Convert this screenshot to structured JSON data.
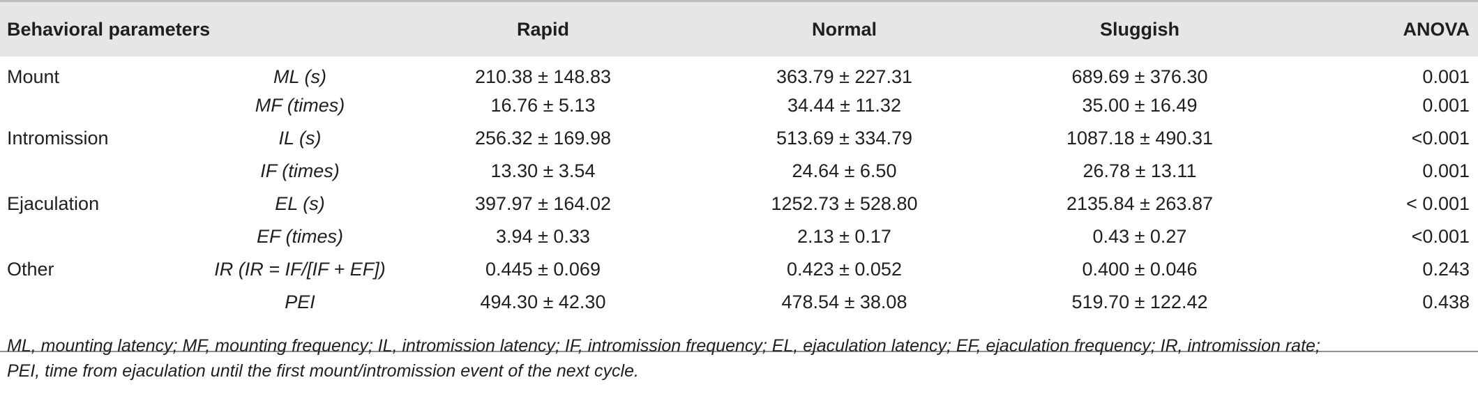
{
  "table": {
    "headers": {
      "behavioral": "Behavioral parameters",
      "rapid": "Rapid",
      "normal": "Normal",
      "sluggish": "Sluggish",
      "anova": "ANOVA"
    },
    "rows": [
      {
        "group": "Mount",
        "param": "ML (s)",
        "rapid": "210.38 ± 148.83",
        "normal": "363.79 ± 227.31",
        "sluggish": "689.69 ± 376.30",
        "anova": "0.001"
      },
      {
        "group": "",
        "param": "MF (times)",
        "rapid": "16.76 ± 5.13",
        "normal": "34.44 ± 11.32",
        "sluggish": "35.00 ± 16.49",
        "anova": "0.001"
      },
      {
        "group": "Intromission",
        "param": "IL (s)",
        "rapid": "256.32 ± 169.98",
        "normal": "513.69 ± 334.79",
        "sluggish": "1087.18 ± 490.31",
        "anova": "<0.001"
      },
      {
        "group": "",
        "param": "IF (times)",
        "rapid": "13.30 ± 3.54",
        "normal": "24.64 ± 6.50",
        "sluggish": "26.78 ± 13.11",
        "anova": "0.001"
      },
      {
        "group": "Ejaculation",
        "param": "EL (s)",
        "rapid": "397.97 ± 164.02",
        "normal": "1252.73 ± 528.80",
        "sluggish": "2135.84 ± 263.87",
        "anova": "< 0.001"
      },
      {
        "group": "",
        "param": "EF (times)",
        "rapid": "3.94 ± 0.33",
        "normal": "2.13 ± 0.17",
        "sluggish": "0.43 ± 0.27",
        "anova": "<0.001"
      },
      {
        "group": "Other",
        "param": "IR (IR = IF/[IF + EF])",
        "rapid": "0.445 ± 0.069",
        "normal": "0.423 ± 0.052",
        "sluggish": "0.400 ± 0.046",
        "anova": "0.243"
      },
      {
        "group": "",
        "param": "PEI",
        "rapid": "494.30 ± 42.30",
        "normal": "478.54 ± 38.08",
        "sluggish": "519.70 ± 122.42",
        "anova": "0.438"
      }
    ]
  },
  "footnote": {
    "line1": "ML, mounting latency; MF, mounting frequency; IL, intromission latency; IF, intromission frequency; EL, ejaculation latency; EF, ejaculation frequency; IR, intromission rate;",
    "line2": "PEI, time from ejaculation until the first mount/intromission event of the next cycle."
  }
}
